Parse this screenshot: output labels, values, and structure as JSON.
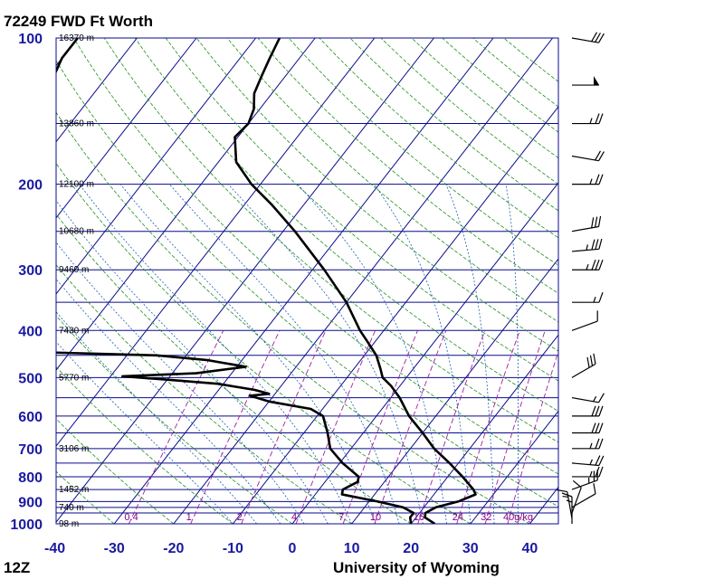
{
  "title": "72249 FWD Ft Worth",
  "footer": {
    "left": "12Z",
    "right": "University of Wyoming"
  },
  "colors": {
    "isobar": "#0a0a8c",
    "isotherm": "#0a0a8c",
    "dry_adiabat": "#1f8f1f",
    "moist_adiabat": "#1c5fb0",
    "mixing_ratio": "#a020a0",
    "profile": "#000000",
    "barb": "#000000"
  },
  "chart_data": {
    "type": "line",
    "subtype": "skew-T log-P diagram",
    "station": "72249 FWD Ft Worth",
    "xlabel": "",
    "ylabel": "",
    "x_unit": "C",
    "xlim": [
      -40,
      45
    ],
    "ylim_hPa": [
      1000,
      100
    ],
    "y_scale": "log",
    "x_ticks": [
      -40,
      -30,
      -20,
      -10,
      0,
      10,
      20,
      30,
      40
    ],
    "pressure_ticks": [
      100,
      200,
      300,
      400,
      500,
      600,
      700,
      800,
      900,
      1000
    ],
    "isobars_hPa": [
      100,
      150,
      200,
      250,
      300,
      350,
      400,
      450,
      500,
      550,
      600,
      650,
      700,
      750,
      800,
      850,
      900,
      925,
      950,
      1000
    ],
    "height_labels": [
      {
        "p": 100,
        "text": "16370 m"
      },
      {
        "p": 150,
        "text": "13860 m"
      },
      {
        "p": 200,
        "text": "12100 m"
      },
      {
        "p": 250,
        "text": "10680 m"
      },
      {
        "p": 300,
        "text": "9460 m"
      },
      {
        "p": 400,
        "text": "7430 m"
      },
      {
        "p": 500,
        "text": "5770 m"
      },
      {
        "p": 700,
        "text": "3106 m"
      },
      {
        "p": 850,
        "text": "1452 m"
      },
      {
        "p": 925,
        "text": "740 m"
      },
      {
        "p": 1000,
        "text": "98 m"
      }
    ],
    "mixing_ratio_labels": [
      "0.4",
      "1",
      "2",
      "4",
      "7",
      "10",
      "16",
      "24",
      "32",
      "40g/kg"
    ],
    "mixing_ratio_values": [
      0.4,
      1,
      2,
      4,
      7,
      10,
      16,
      24,
      32,
      40
    ],
    "series": [
      {
        "id": "temperature",
        "points": [
          {
            "p": 1000,
            "t": 24
          },
          {
            "p": 970,
            "t": 21.5
          },
          {
            "p": 950,
            "t": 21
          },
          {
            "p": 925,
            "t": 22
          },
          {
            "p": 900,
            "t": 25
          },
          {
            "p": 870,
            "t": 27
          },
          {
            "p": 850,
            "t": 26
          },
          {
            "p": 800,
            "t": 22.5
          },
          {
            "p": 750,
            "t": 18.5
          },
          {
            "p": 700,
            "t": 14
          },
          {
            "p": 650,
            "t": 10
          },
          {
            "p": 600,
            "t": 5.5
          },
          {
            "p": 550,
            "t": 1.5
          },
          {
            "p": 520,
            "t": -1.5
          },
          {
            "p": 500,
            "t": -4
          },
          {
            "p": 480,
            "t": -5.5
          },
          {
            "p": 450,
            "t": -8
          },
          {
            "p": 420,
            "t": -11.5
          },
          {
            "p": 400,
            "t": -14
          },
          {
            "p": 350,
            "t": -20
          },
          {
            "p": 300,
            "t": -28
          },
          {
            "p": 250,
            "t": -38
          },
          {
            "p": 220,
            "t": -45.5
          },
          {
            "p": 200,
            "t": -51.5
          },
          {
            "p": 180,
            "t": -57
          },
          {
            "p": 160,
            "t": -60.5
          },
          {
            "p": 150,
            "t": -60
          },
          {
            "p": 140,
            "t": -61
          },
          {
            "p": 130,
            "t": -63
          },
          {
            "p": 120,
            "t": -64
          },
          {
            "p": 110,
            "t": -65
          },
          {
            "p": 100,
            "t": -66
          }
        ]
      },
      {
        "id": "dewpoint",
        "points": [
          {
            "p": 1000,
            "t": 20
          },
          {
            "p": 970,
            "t": 19
          },
          {
            "p": 950,
            "t": 19
          },
          {
            "p": 925,
            "t": 16.5
          },
          {
            "p": 900,
            "t": 11.5
          },
          {
            "p": 870,
            "t": 4.5
          },
          {
            "p": 850,
            "t": 4
          },
          {
            "p": 820,
            "t": 5.5
          },
          {
            "p": 800,
            "t": 5
          },
          {
            "p": 750,
            "t": 0.5
          },
          {
            "p": 700,
            "t": -3.5
          },
          {
            "p": 650,
            "t": -6
          },
          {
            "p": 600,
            "t": -9
          },
          {
            "p": 580,
            "t": -12
          },
          {
            "p": 560,
            "t": -20
          },
          {
            "p": 545,
            "t": -24
          },
          {
            "p": 540,
            "t": -21
          },
          {
            "p": 530,
            "t": -24
          },
          {
            "p": 515,
            "t": -31
          },
          {
            "p": 505,
            "t": -40
          },
          {
            "p": 497,
            "t": -48
          },
          {
            "p": 490,
            "t": -36
          },
          {
            "p": 475,
            "t": -28.5
          },
          {
            "p": 460,
            "t": -36
          },
          {
            "p": 450,
            "t": -45
          },
          {
            "p": 440,
            "t": -75
          },
          {
            "p": 420,
            "t": -75
          },
          {
            "p": 400,
            "t": -75
          },
          {
            "p": 350,
            "t": -80
          },
          {
            "p": 300,
            "t": -79
          },
          {
            "p": 270,
            "t": -78
          },
          {
            "p": 250,
            "t": -85
          },
          {
            "p": 220,
            "t": -93
          },
          {
            "p": 200,
            "t": -94
          },
          {
            "p": 180,
            "t": -95
          },
          {
            "p": 160,
            "t": -95
          },
          {
            "p": 150,
            "t": -97
          },
          {
            "p": 140,
            "t": -97
          },
          {
            "p": 130,
            "t": -98
          },
          {
            "p": 120,
            "t": -99
          },
          {
            "p": 110,
            "t": -100
          },
          {
            "p": 100,
            "t": -100
          }
        ]
      }
    ],
    "wind_barbs": [
      {
        "p": 1000,
        "speed_kt": 15,
        "dir": 180
      },
      {
        "p": 975,
        "speed_kt": 15,
        "dir": 170
      },
      {
        "p": 950,
        "speed_kt": 10,
        "dir": 200
      },
      {
        "p": 925,
        "speed_kt": 10,
        "dir": 240
      },
      {
        "p": 850,
        "speed_kt": 25,
        "dir": 250
      },
      {
        "p": 800,
        "speed_kt": 25,
        "dir": 270
      },
      {
        "p": 750,
        "speed_kt": 25,
        "dir": 275
      },
      {
        "p": 700,
        "speed_kt": 25,
        "dir": 270
      },
      {
        "p": 650,
        "speed_kt": 30,
        "dir": 270
      },
      {
        "p": 600,
        "speed_kt": 30,
        "dir": 270
      },
      {
        "p": 550,
        "speed_kt": 15,
        "dir": 280
      },
      {
        "p": 500,
        "speed_kt": 30,
        "dir": 240
      },
      {
        "p": 400,
        "speed_kt": 10,
        "dir": 250
      },
      {
        "p": 350,
        "speed_kt": 15,
        "dir": 270
      },
      {
        "p": 300,
        "speed_kt": 35,
        "dir": 270
      },
      {
        "p": 275,
        "speed_kt": 35,
        "dir": 265
      },
      {
        "p": 250,
        "speed_kt": 30,
        "dir": 260
      },
      {
        "p": 200,
        "speed_kt": 25,
        "dir": 270
      },
      {
        "p": 175,
        "speed_kt": 20,
        "dir": 280
      },
      {
        "p": 150,
        "speed_kt": 25,
        "dir": 270
      },
      {
        "p": 125,
        "speed_kt": 50,
        "dir": 270
      },
      {
        "p": 100,
        "speed_kt": 30,
        "dir": 280
      }
    ]
  }
}
